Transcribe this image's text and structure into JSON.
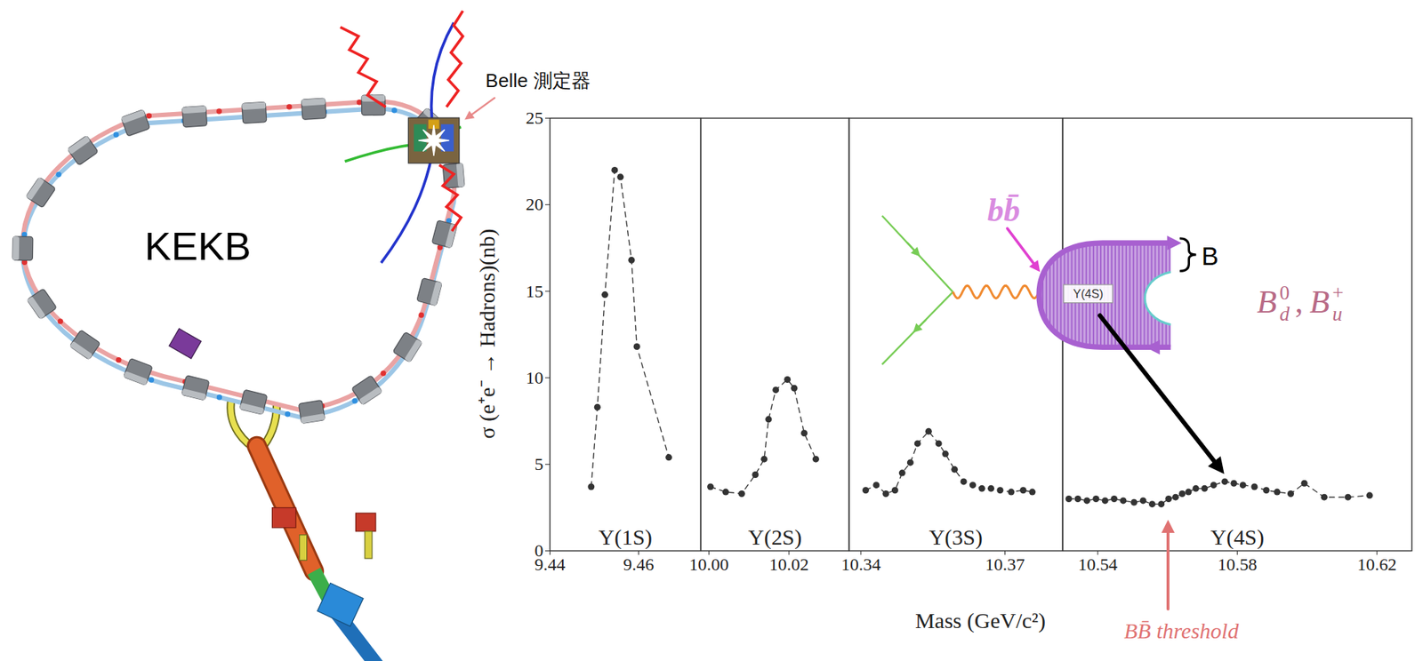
{
  "chart_data": {
    "type": "line",
    "marker": "circle",
    "line_style": "dashed",
    "color": "#333333",
    "x_label": "Mass (GeV/c²)",
    "y_label": "σ (e⁺e⁻ → Hadrons)(nb)",
    "ylim": [
      0,
      25
    ],
    "yticks": [
      0,
      5,
      10,
      15,
      20,
      25
    ],
    "segments": [
      {
        "name": "Υ(1S)",
        "xlim": [
          9.44,
          9.474
        ],
        "xticks": [
          9.44,
          9.46
        ],
        "x": [
          9.4493,
          9.4507,
          9.4524,
          9.4546,
          9.4559,
          9.4584,
          9.4596,
          9.4668
        ],
        "values": [
          3.7,
          8.3,
          14.8,
          22.0,
          21.6,
          16.8,
          11.8,
          5.4
        ]
      },
      {
        "name": "Υ(2S)",
        "xlim": [
          9.998,
          10.035
        ],
        "xticks": [
          {
            "value": 10,
            "label": "10.00"
          },
          10.02
        ],
        "x": [
          10.0004,
          10.0042,
          10.0082,
          10.0116,
          10.0138,
          10.0149,
          10.0167,
          10.0196,
          10.0213,
          10.0238,
          10.0267
        ],
        "values": [
          3.7,
          3.4,
          3.3,
          4.4,
          5.3,
          7.6,
          9.3,
          9.9,
          9.4,
          6.8,
          5.3
        ]
      },
      {
        "name": "Υ(3S)",
        "xlim": [
          10.3375,
          10.382
        ],
        "xticks": [
          10.34,
          10.37
        ],
        "x": [
          10.341,
          10.3432,
          10.3452,
          10.3471,
          10.3486,
          10.3503,
          10.3518,
          10.3541,
          10.3562,
          10.3576,
          10.3595,
          10.3614,
          10.3633,
          10.3652,
          10.3671,
          10.369,
          10.3713,
          10.3738,
          10.3757
        ],
        "values": [
          3.5,
          3.8,
          3.3,
          3.5,
          4.5,
          5.1,
          6.2,
          6.9,
          6.2,
          5.6,
          4.7,
          4.0,
          3.8,
          3.6,
          3.6,
          3.5,
          3.4,
          3.5,
          3.4
        ]
      },
      {
        "name": "Υ(4S)",
        "xlim": [
          10.53,
          10.63
        ],
        "xticks": [
          10.54,
          10.58,
          10.62
        ],
        "x": [
          10.5317,
          10.5343,
          10.5369,
          10.5395,
          10.5421,
          10.5447,
          10.5473,
          10.5504,
          10.553,
          10.5556,
          10.5582,
          10.5603,
          10.5623,
          10.5642,
          10.566,
          10.5681,
          10.5706,
          10.5732,
          10.5764,
          10.579,
          10.5816,
          10.5849,
          10.5883,
          10.5914,
          10.5953,
          10.5992,
          10.6049,
          10.6117,
          10.6179
        ],
        "values": [
          3.0,
          3.0,
          2.9,
          3.0,
          2.9,
          3.0,
          2.9,
          2.8,
          2.9,
          2.7,
          2.7,
          3.0,
          3.1,
          3.3,
          3.4,
          3.6,
          3.6,
          3.8,
          4.0,
          3.9,
          3.8,
          3.7,
          3.5,
          3.4,
          3.3,
          3.9,
          3.1,
          3.1,
          3.2
        ]
      }
    ],
    "annotations": [
      {
        "text": "BB̄ threshold",
        "x": 10.5603,
        "color": "#e07272"
      }
    ]
  },
  "illustration": {
    "label": "KEKB",
    "detector_label": "Belle 測定器"
  },
  "inset": {
    "quark_label": "bb̄",
    "blob_label": "Υ(4S)",
    "brace_label": "B",
    "meson_labels": [
      {
        "base": "B",
        "sub": "d",
        "sup": "0"
      },
      {
        "base": "B",
        "sub": "u",
        "sup": "+"
      }
    ],
    "separator": ","
  }
}
